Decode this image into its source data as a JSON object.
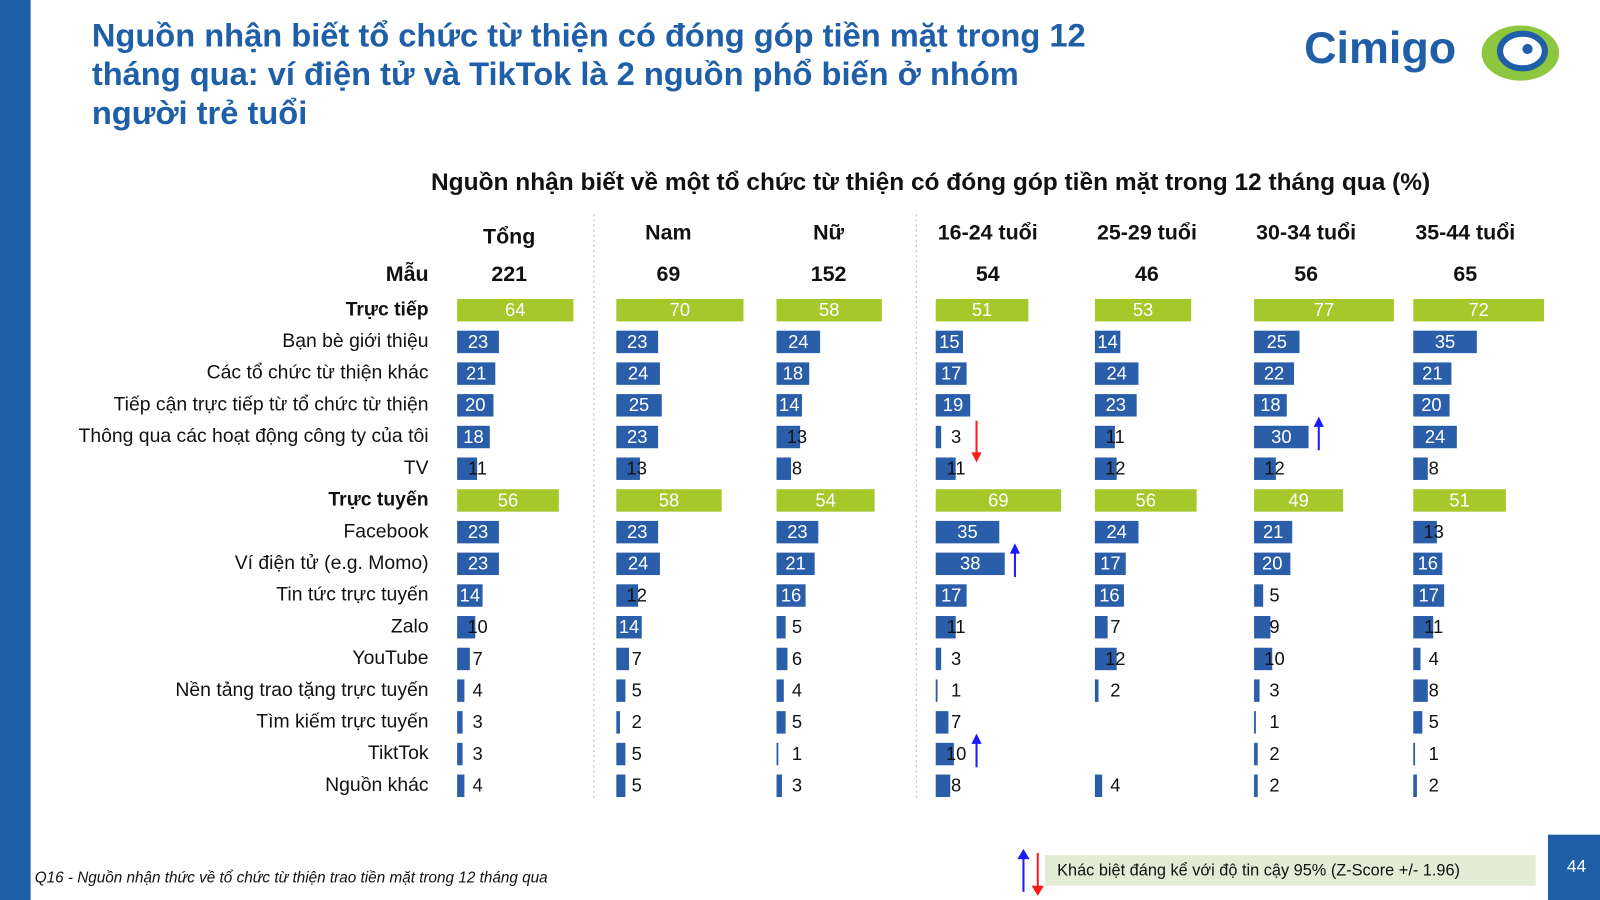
{
  "header": {
    "title": [
      "Nguồn nhận biết tổ chức từ thiện có đóng góp tiền mặt trong 12",
      "tháng qua: ví điện tử và TikTok là 2 nguồn phổ biến ở nhóm",
      "người trẻ tuổi"
    ],
    "logo": "Cimigo"
  },
  "chart_data": {
    "type": "bar",
    "title": "Nguồn nhận biết về một tổ chức từ thiện có đóng góp tiền mặt trong 12 tháng qua (%)",
    "sample_label": "Mẫu",
    "categories": [
      "Trực tiếp",
      "Bạn bè giới thiệu",
      "Các tổ chức từ thiện khác",
      "Tiếp cận trực tiếp từ tổ chức từ thiện",
      "Thông qua các hoạt động công ty của tôi",
      "TV",
      "Trực tuyến",
      "Facebook",
      "Ví điện tử (e.g. Momo)",
      "Tin tức trực tuyến",
      "Zalo",
      "YouTube",
      "Nền tảng trao tặng trực tuyến",
      "Tìm kiếm trực tuyến",
      "TiktTok",
      "Nguồn khác"
    ],
    "bar_colors": [
      "#a5c82b",
      "#2a5ea8",
      "#2a5ea8",
      "#2a5ea8",
      "#2a5ea8",
      "#2a5ea8",
      "#a5c82b",
      "#2a5ea8",
      "#2a5ea8",
      "#2a5ea8",
      "#2a5ea8",
      "#2a5ea8",
      "#2a5ea8",
      "#2a5ea8",
      "#2a5ea8",
      "#2a5ea8"
    ],
    "series": [
      {
        "name": "Tổng",
        "sample": 221,
        "values": [
          64,
          23,
          21,
          20,
          18,
          11,
          56,
          23,
          23,
          14,
          10,
          7,
          4,
          3,
          3,
          4
        ],
        "significance": [
          null,
          null,
          null,
          null,
          null,
          null,
          null,
          null,
          null,
          null,
          null,
          null,
          null,
          null,
          null,
          null
        ]
      },
      {
        "name": "Nam",
        "sample": 69,
        "values": [
          70,
          23,
          24,
          25,
          23,
          13,
          58,
          23,
          24,
          12,
          14,
          7,
          5,
          2,
          5,
          5
        ],
        "significance": [
          null,
          null,
          null,
          null,
          null,
          null,
          null,
          null,
          null,
          null,
          null,
          null,
          null,
          null,
          null,
          null
        ]
      },
      {
        "name": "Nữ",
        "sample": 152,
        "values": [
          58,
          24,
          18,
          14,
          13,
          8,
          54,
          23,
          21,
          16,
          5,
          6,
          4,
          5,
          1,
          3
        ],
        "significance": [
          null,
          null,
          null,
          null,
          null,
          null,
          null,
          null,
          null,
          null,
          null,
          null,
          null,
          null,
          null,
          null
        ]
      },
      {
        "name": "16-24 tuổi",
        "sample": 54,
        "values": [
          51,
          15,
          17,
          19,
          3,
          11,
          69,
          35,
          38,
          17,
          11,
          3,
          1,
          7,
          10,
          8
        ],
        "significance": [
          null,
          null,
          null,
          null,
          "down",
          null,
          null,
          null,
          "up",
          null,
          null,
          null,
          null,
          null,
          "up",
          null
        ]
      },
      {
        "name": "25-29 tuổi",
        "sample": 46,
        "values": [
          53,
          14,
          24,
          23,
          11,
          12,
          56,
          24,
          17,
          16,
          7,
          12,
          2,
          null,
          null,
          4
        ],
        "significance": [
          null,
          null,
          null,
          null,
          null,
          null,
          null,
          null,
          null,
          null,
          null,
          null,
          null,
          null,
          null,
          null
        ]
      },
      {
        "name": "30-34 tuổi",
        "sample": 56,
        "values": [
          77,
          25,
          22,
          18,
          30,
          12,
          49,
          21,
          20,
          5,
          9,
          10,
          3,
          1,
          2,
          2
        ],
        "significance": [
          null,
          null,
          null,
          null,
          "up",
          null,
          null,
          null,
          null,
          null,
          null,
          null,
          null,
          null,
          null,
          null
        ]
      },
      {
        "name": "35-44 tuổi",
        "sample": 65,
        "values": [
          72,
          35,
          21,
          20,
          24,
          8,
          51,
          13,
          16,
          17,
          11,
          4,
          8,
          5,
          1,
          2
        ],
        "significance": [
          null,
          null,
          null,
          null,
          null,
          null,
          null,
          null,
          null,
          null,
          null,
          null,
          null,
          null,
          null,
          null
        ]
      }
    ],
    "up_color": "#1a1aff",
    "down_color": "#ff1a1a"
  },
  "footer": {
    "note": "Q16 - Nguồn nhận thức về tổ chức từ thiện trao tiền mặt trong 12 tháng qua",
    "legend": "Khác biệt đáng kể với độ tin cậy 95% (Z-Score +/- 1.96)",
    "page": 44
  }
}
